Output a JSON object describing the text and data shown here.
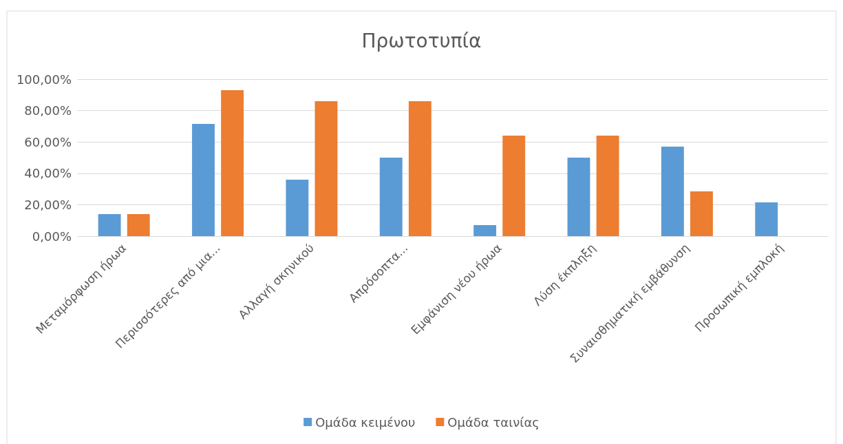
{
  "chart_data": {
    "type": "bar",
    "title": "Πρωτοτυπία",
    "categories": [
      "Μεταμόρφωση ήρωα",
      "Περισσότερες από μια...",
      "Αλλαγή σκηνικού",
      "Απρόσοπτα...",
      "Εμφάνιση νέου ήρωα",
      "Λύση έκπληξη",
      "Συναισθηματική εμβάθυνση",
      "Προσωπική εμπλοκή"
    ],
    "series": [
      {
        "name": "Ομάδα κειμένου",
        "color": "#5b9bd5",
        "values": [
          14,
          71.5,
          36,
          50,
          7,
          50,
          57,
          21.5
        ]
      },
      {
        "name": "Ομάδα ταινίας",
        "color": "#ed7d31",
        "values": [
          14,
          93,
          86,
          86,
          64,
          64,
          28.5,
          0
        ]
      }
    ],
    "ylim": [
      0,
      100
    ],
    "yticks": [
      {
        "value": 0,
        "label": "0,00%"
      },
      {
        "value": 20,
        "label": "20,00%"
      },
      {
        "value": 40,
        "label": "40,00%"
      },
      {
        "value": 60,
        "label": "60,00%"
      },
      {
        "value": 80,
        "label": "80,00%"
      },
      {
        "value": 100,
        "label": "100,00%"
      }
    ],
    "grid": "y",
    "legend": "bottom"
  }
}
